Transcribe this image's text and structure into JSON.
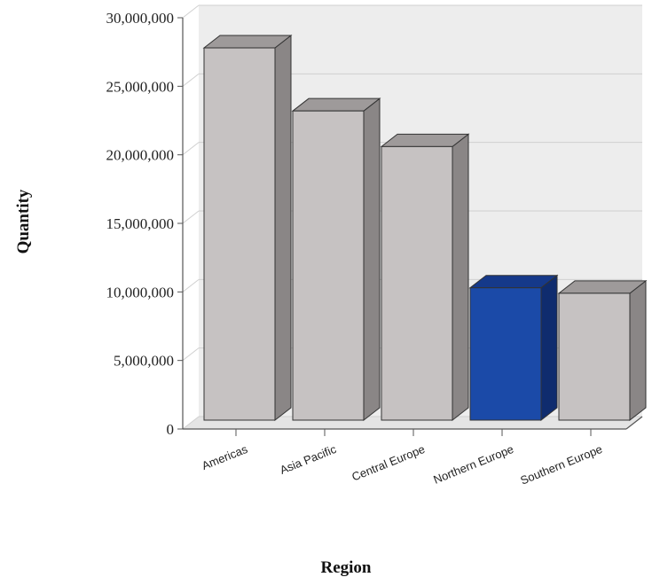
{
  "chart_data": {
    "type": "bar",
    "style": "3d-column",
    "title": "",
    "xlabel": "Region",
    "ylabel": "Quantity",
    "categories": [
      "Americas",
      "Asia Pacific",
      "Central Europe",
      "Northern Europe",
      "Southern Europe"
    ],
    "values": [
      27800000,
      23200000,
      20600000,
      10300000,
      9900000
    ],
    "highlighted_category": "Northern Europe",
    "ylim": [
      0,
      30000000
    ],
    "yticks": [
      0,
      5000000,
      10000000,
      15000000,
      20000000,
      25000000,
      30000000
    ],
    "ytick_labels": [
      "0",
      "5,000,000",
      "10,000,000",
      "15,000,000",
      "20,000,000",
      "25,000,000",
      "30,000,000"
    ],
    "grid": true,
    "legend": "none",
    "colors": {
      "bar_front": "#c6c2c2",
      "bar_top": "#9e9a9a",
      "bar_side": "#8a8686",
      "highlight_front": "#1b4aa8",
      "highlight_top": "#15398a",
      "highlight_side": "#0f2c6e",
      "wall": "#ededed",
      "grid": "#d0d0d0"
    }
  }
}
